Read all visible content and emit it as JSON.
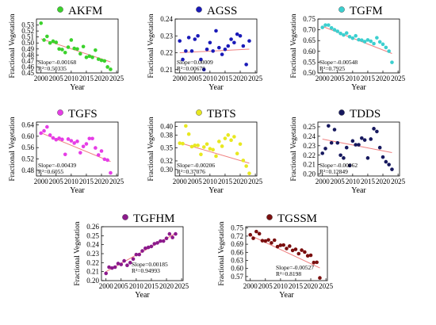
{
  "chart_data": [
    {
      "type": "scatter",
      "title": "AKFM",
      "ylabel": "Fractional Vegetation",
      "xlabel": "Year",
      "color": "#3bd22c",
      "ylim": [
        0.45,
        0.54
      ],
      "yticks": [
        "0.45",
        "0.46",
        "0.47",
        "0.48",
        "0.49",
        "0.50",
        "0.51",
        "0.52",
        "0.53"
      ],
      "xticks": [
        "2000",
        "2005",
        "2010",
        "2015",
        "2020",
        "2025"
      ],
      "slope_text": "Slope=-0.00168",
      "r2_text": "R²=0.50335",
      "trend": [
        [
          2000,
          0.507
        ],
        [
          2023,
          0.4684
        ]
      ],
      "x": [
        2000,
        2001,
        2002,
        2003,
        2004,
        2005,
        2006,
        2007,
        2008,
        2009,
        2010,
        2011,
        2012,
        2013,
        2014,
        2015,
        2016,
        2017,
        2018,
        2019,
        2020,
        2021,
        2022,
        2023
      ],
      "y": [
        0.533,
        0.505,
        0.511,
        0.5,
        0.503,
        0.501,
        0.49,
        0.489,
        0.484,
        0.493,
        0.505,
        0.491,
        0.49,
        0.482,
        0.494,
        0.476,
        0.478,
        0.476,
        0.488,
        0.473,
        0.471,
        0.47,
        0.46,
        0.456
      ]
    },
    {
      "type": "scatter",
      "title": "AGSS",
      "ylabel": "Fractional Vegetation",
      "xlabel": "Year",
      "color": "#1a1ab8",
      "ylim": [
        0.208,
        0.24
      ],
      "yticks": [
        "0.21",
        "0.22",
        "0.23",
        "0.24"
      ],
      "xticks": [
        "2000",
        "2005",
        "2010",
        "2015",
        "2020",
        "2025"
      ],
      "slope_text": "Slope=0.00009",
      "r2_text": "R²=0.00678",
      "trend": [
        [
          2000,
          0.22
        ],
        [
          2023,
          0.2221
        ]
      ],
      "x": [
        2000,
        2001,
        2002,
        2003,
        2004,
        2005,
        2006,
        2007,
        2008,
        2009,
        2010,
        2011,
        2012,
        2013,
        2014,
        2015,
        2016,
        2017,
        2018,
        2019,
        2020,
        2021,
        2022,
        2023
      ],
      "y": [
        0.227,
        0.216,
        0.221,
        0.229,
        0.221,
        0.228,
        0.23,
        0.216,
        0.21,
        0.222,
        0.226,
        0.221,
        0.233,
        0.223,
        0.219,
        0.222,
        0.224,
        0.228,
        0.226,
        0.231,
        0.23,
        0.224,
        0.213,
        0.227
      ]
    },
    {
      "type": "scatter",
      "title": "TGFM",
      "ylabel": "Fractional Vegetation",
      "xlabel": "Year",
      "color": "#3ccfcf",
      "ylim": [
        0.5,
        0.75
      ],
      "yticks": [
        "0.50",
        "0.55",
        "0.60",
        "0.65",
        "0.70",
        "0.75"
      ],
      "xticks": [
        "2000",
        "2005",
        "2010",
        "2015",
        "2020",
        "2025"
      ],
      "slope_text": "Slope=-0.00548",
      "r2_text": "R²=0.7925",
      "trend": [
        [
          2000,
          0.716
        ],
        [
          2023,
          0.59
        ]
      ],
      "x": [
        2000,
        2001,
        2002,
        2003,
        2004,
        2005,
        2006,
        2007,
        2008,
        2009,
        2010,
        2011,
        2012,
        2013,
        2014,
        2015,
        2016,
        2017,
        2018,
        2019,
        2020,
        2021,
        2022,
        2023
      ],
      "y": [
        0.711,
        0.722,
        0.722,
        0.709,
        0.7,
        0.693,
        0.683,
        0.676,
        0.685,
        0.668,
        0.661,
        0.672,
        0.654,
        0.652,
        0.645,
        0.653,
        0.647,
        0.636,
        0.663,
        0.644,
        0.633,
        0.618,
        0.601,
        0.549
      ]
    },
    {
      "type": "scatter",
      "title": "TGFS",
      "ylabel": "Fractional Vegetation",
      "xlabel": "Year",
      "color": "#e63de6",
      "ylim": [
        0.46,
        0.65
      ],
      "yticks": [
        "0.48",
        "0.52",
        "0.56",
        "0.60",
        "0.64"
      ],
      "xticks": [
        "2000",
        "2005",
        "2010",
        "2015",
        "2020",
        "2025"
      ],
      "slope_text": "Slope=-0.00439",
      "r2_text": "R²=0.6055",
      "trend": [
        [
          2000,
          0.612
        ],
        [
          2023,
          0.511
        ]
      ],
      "x": [
        2000,
        2001,
        2002,
        2003,
        2004,
        2005,
        2006,
        2007,
        2008,
        2009,
        2010,
        2011,
        2012,
        2013,
        2014,
        2015,
        2016,
        2017,
        2018,
        2019,
        2020,
        2021,
        2022,
        2023
      ],
      "y": [
        0.611,
        0.619,
        0.633,
        0.604,
        0.594,
        0.588,
        0.593,
        0.589,
        0.536,
        0.59,
        0.584,
        0.576,
        0.582,
        0.542,
        0.564,
        0.573,
        0.592,
        0.592,
        0.559,
        0.534,
        0.548,
        0.519,
        0.516,
        0.471
      ]
    },
    {
      "type": "scatter",
      "title": "TBTS",
      "ylabel": "Fractional Vegetation",
      "xlabel": "Year",
      "color": "#e8e820",
      "ylim": [
        0.285,
        0.41
      ],
      "yticks": [
        "0.30",
        "0.32",
        "0.35",
        "0.38",
        "0.40"
      ],
      "xticks": [
        "2000",
        "2005",
        "2010",
        "2015",
        "2020",
        "2025"
      ],
      "slope_text": "Slope=-0.00206",
      "r2_text": "R²=0.37076",
      "trend": [
        [
          2000,
          0.362
        ],
        [
          2023,
          0.3146
        ]
      ],
      "x": [
        2000,
        2001,
        2002,
        2003,
        2004,
        2005,
        2006,
        2007,
        2008,
        2009,
        2010,
        2011,
        2012,
        2013,
        2014,
        2015,
        2016,
        2017,
        2018,
        2019,
        2020,
        2021,
        2022,
        2023
      ],
      "y": [
        0.361,
        0.36,
        0.401,
        0.382,
        0.353,
        0.356,
        0.356,
        0.335,
        0.352,
        0.359,
        0.348,
        0.346,
        0.331,
        0.365,
        0.354,
        0.372,
        0.38,
        0.368,
        0.376,
        0.337,
        0.359,
        0.321,
        0.308,
        0.291
      ]
    },
    {
      "type": "scatter",
      "title": "TDDS",
      "ylabel": "Fractional Vegetation",
      "xlabel": "Year",
      "color": "#16185e",
      "ylim": [
        0.198,
        0.255
      ],
      "yticks": [
        "0.20",
        "0.21",
        "0.22",
        "0.23",
        "0.24",
        "0.25"
      ],
      "xticks": [
        "2000",
        "2005",
        "2010",
        "2015",
        "2020",
        "2025"
      ],
      "slope_text": "Slope=-0.00062",
      "r2_text": "R²=0.12849",
      "trend": [
        [
          2000,
          0.237
        ],
        [
          2023,
          0.2227
        ]
      ],
      "x": [
        2000,
        2001,
        2002,
        2003,
        2004,
        2005,
        2006,
        2007,
        2008,
        2009,
        2010,
        2011,
        2012,
        2013,
        2014,
        2015,
        2016,
        2017,
        2018,
        2019,
        2020,
        2021,
        2022,
        2023
      ],
      "y": [
        0.222,
        0.227,
        0.251,
        0.233,
        0.247,
        0.233,
        0.22,
        0.217,
        0.228,
        0.209,
        0.235,
        0.231,
        0.231,
        0.238,
        0.236,
        0.217,
        0.237,
        0.248,
        0.245,
        0.228,
        0.218,
        0.213,
        0.21,
        0.205
      ]
    },
    {
      "type": "scatter",
      "title": "TGFHM",
      "ylabel": "Fractional Vegetation",
      "xlabel": "Year",
      "color": "#8c1a8c",
      "ylim": [
        0.2,
        0.26
      ],
      "yticks": [
        "0.20",
        "0.21",
        "0.22",
        "0.23",
        "0.24",
        "0.25",
        "0.26"
      ],
      "xticks": [
        "2000",
        "2005",
        "2010",
        "2015",
        "2020",
        "2025"
      ],
      "slope_text": "Slope=0.00185",
      "r2_text": "R²=0.94993",
      "trend": [
        [
          2000,
          0.21
        ],
        [
          2023,
          0.2525
        ]
      ],
      "x": [
        2000,
        2001,
        2002,
        2003,
        2004,
        2005,
        2006,
        2007,
        2008,
        2009,
        2010,
        2011,
        2012,
        2013,
        2014,
        2015,
        2016,
        2017,
        2018,
        2019,
        2020,
        2021,
        2022,
        2023
      ],
      "y": [
        0.208,
        0.215,
        0.214,
        0.215,
        0.219,
        0.218,
        0.222,
        0.217,
        0.22,
        0.224,
        0.229,
        0.229,
        0.233,
        0.236,
        0.237,
        0.238,
        0.241,
        0.242,
        0.244,
        0.244,
        0.247,
        0.252,
        0.248,
        0.252
      ]
    },
    {
      "type": "scatter",
      "title": "TGSSM",
      "ylabel": "Fractional Vegetation",
      "xlabel": "Year",
      "color": "#7a0f0f",
      "ylim": [
        0.555,
        0.755
      ],
      "yticks": [
        "0.57",
        "0.60",
        "0.63",
        "0.66",
        "0.69",
        "0.72",
        "0.75"
      ],
      "xticks": [
        "2000",
        "2005",
        "2010",
        "2015",
        "2020",
        "2025"
      ],
      "slope_text": "Slope=-0.00527",
      "r2_text": "R²=0.8198",
      "trend": [
        [
          2000,
          0.723
        ],
        [
          2023,
          0.602
        ]
      ],
      "x": [
        2000,
        2001,
        2002,
        2003,
        2004,
        2005,
        2006,
        2007,
        2008,
        2009,
        2010,
        2011,
        2012,
        2013,
        2014,
        2015,
        2016,
        2017,
        2018,
        2019,
        2020,
        2021,
        2022,
        2023
      ],
      "y": [
        0.725,
        0.712,
        0.737,
        0.729,
        0.703,
        0.702,
        0.706,
        0.695,
        0.705,
        0.681,
        0.686,
        0.687,
        0.674,
        0.683,
        0.667,
        0.671,
        0.655,
        0.668,
        0.661,
        0.647,
        0.649,
        0.622,
        0.623,
        0.565
      ]
    }
  ]
}
